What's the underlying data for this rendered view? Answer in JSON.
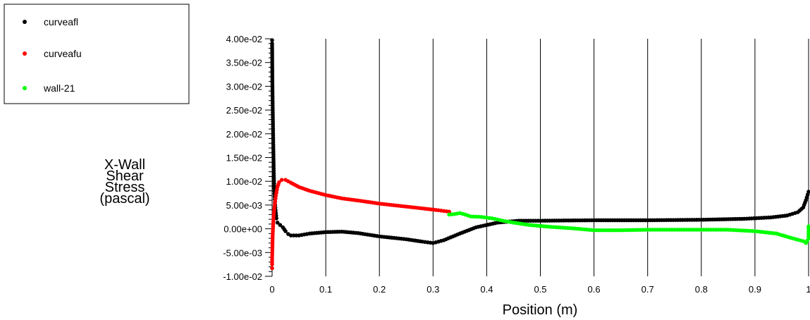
{
  "chart_data": {
    "type": "scatter",
    "title": "",
    "xlabel": "Position (m)",
    "ylabel": [
      "X-Wall",
      "Shear",
      "Stress",
      "(pascal)"
    ],
    "xlim": [
      0,
      1
    ],
    "ylim": [
      -0.01,
      0.04
    ],
    "x_ticks": [
      "0",
      "0.1",
      "0.2",
      "0.3",
      "0.4",
      "0.5",
      "0.6",
      "0.7",
      "0.8",
      "0.9",
      "1"
    ],
    "y_ticks": [
      "-1.00e-02",
      "-5.00e-03",
      "0.00e+00",
      "5.00e-03",
      "1.00e-02",
      "1.50e-02",
      "2.00e-02",
      "2.50e-02",
      "3.00e-02",
      "3.50e-02",
      "4.00e-02"
    ],
    "grid": "vertical",
    "legend_position": "top-left",
    "series": [
      {
        "name": "curveafl",
        "color": "#000000",
        "points": [
          [
            0.0,
            0.0397
          ],
          [
            0.0,
            0.039
          ],
          [
            0.0005,
            0.0308
          ],
          [
            0.001,
            0.0264
          ],
          [
            0.002,
            0.0187
          ],
          [
            0.003,
            0.0122
          ],
          [
            0.004,
            0.0085
          ],
          [
            0.005,
            0.0062
          ],
          [
            0.006,
            0.0045
          ],
          [
            0.007,
            0.0033
          ],
          [
            0.008,
            0.0022
          ],
          [
            0.01,
            0.0013
          ],
          [
            0.015,
            0.0008
          ],
          [
            0.02,
            0.0003
          ],
          [
            0.025,
            -0.0005
          ],
          [
            0.03,
            -0.0011
          ],
          [
            0.035,
            -0.0014
          ],
          [
            0.05,
            -0.0014
          ],
          [
            0.07,
            -0.001
          ],
          [
            0.1,
            -0.0007
          ],
          [
            0.13,
            -0.0006
          ],
          [
            0.16,
            -0.0009
          ],
          [
            0.2,
            -0.0016
          ],
          [
            0.25,
            -0.0022
          ],
          [
            0.28,
            -0.0027
          ],
          [
            0.3,
            -0.003
          ],
          [
            0.32,
            -0.0024
          ],
          [
            0.35,
            -0.001
          ],
          [
            0.38,
            0.0003
          ],
          [
            0.42,
            0.0013
          ],
          [
            0.46,
            0.0017
          ],
          [
            0.5,
            0.0017
          ],
          [
            0.6,
            0.0018
          ],
          [
            0.7,
            0.0018
          ],
          [
            0.8,
            0.0019
          ],
          [
            0.88,
            0.0021
          ],
          [
            0.93,
            0.0024
          ],
          [
            0.96,
            0.0028
          ],
          [
            0.98,
            0.0035
          ],
          [
            0.99,
            0.0045
          ],
          [
            0.995,
            0.006
          ],
          [
            1.0,
            0.0078
          ]
        ]
      },
      {
        "name": "curveafu",
        "color": "#ff0000",
        "points": [
          [
            0.0,
            -0.0083
          ],
          [
            0.0,
            -0.0075
          ],
          [
            0.0,
            -0.0065
          ],
          [
            0.0005,
            -0.004
          ],
          [
            0.001,
            -0.0015
          ],
          [
            0.002,
            0.001
          ],
          [
            0.003,
            0.003
          ],
          [
            0.005,
            0.0052
          ],
          [
            0.007,
            0.007
          ],
          [
            0.01,
            0.0088
          ],
          [
            0.013,
            0.0098
          ],
          [
            0.018,
            0.0103
          ],
          [
            0.025,
            0.0103
          ],
          [
            0.035,
            0.0097
          ],
          [
            0.05,
            0.0088
          ],
          [
            0.07,
            0.008
          ],
          [
            0.1,
            0.0071
          ],
          [
            0.13,
            0.0064
          ],
          [
            0.17,
            0.0058
          ],
          [
            0.2,
            0.0053
          ],
          [
            0.24,
            0.0048
          ],
          [
            0.28,
            0.0043
          ],
          [
            0.31,
            0.0039
          ],
          [
            0.33,
            0.0036
          ]
        ]
      },
      {
        "name": "wall-21",
        "color": "#00ff00",
        "points": [
          [
            0.33,
            0.003
          ],
          [
            0.34,
            0.0031
          ],
          [
            0.35,
            0.0033
          ],
          [
            0.36,
            0.003
          ],
          [
            0.37,
            0.0026
          ],
          [
            0.39,
            0.0025
          ],
          [
            0.41,
            0.0022
          ],
          [
            0.43,
            0.0017
          ],
          [
            0.45,
            0.0013
          ],
          [
            0.48,
            0.0008
          ],
          [
            0.52,
            0.0004
          ],
          [
            0.56,
            0.0001
          ],
          [
            0.6,
            -0.0003
          ],
          [
            0.65,
            -0.0003
          ],
          [
            0.7,
            -0.0002
          ],
          [
            0.75,
            -0.0002
          ],
          [
            0.8,
            -0.0002
          ],
          [
            0.85,
            -0.0002
          ],
          [
            0.9,
            -0.0005
          ],
          [
            0.94,
            -0.001
          ],
          [
            0.97,
            -0.002
          ],
          [
            0.99,
            -0.0026
          ],
          [
            0.995,
            -0.003
          ],
          [
            1.0,
            -0.002
          ],
          [
            1.0,
            0.0005
          ]
        ]
      }
    ]
  }
}
